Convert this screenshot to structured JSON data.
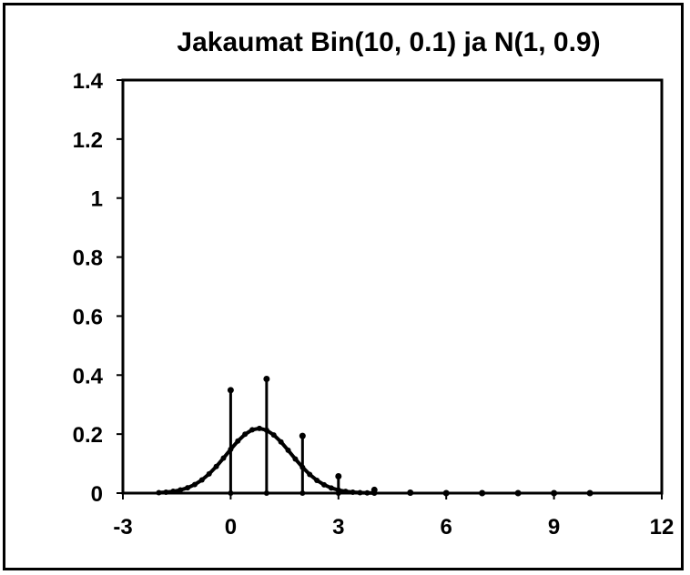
{
  "chart_data": {
    "type": "line",
    "title": "Jakaumat Bin(10, 0.1) ja N(1, 0.9)",
    "xlabel": "",
    "ylabel": "",
    "xlim": [
      -3,
      12
    ],
    "ylim": [
      0,
      1.4
    ],
    "x_ticks": [
      -3,
      0,
      3,
      6,
      9,
      12
    ],
    "x_tick_labels": [
      "-3",
      "0",
      "3",
      "6",
      "9",
      "12"
    ],
    "y_ticks": [
      0,
      0.2,
      0.4,
      0.6,
      0.8,
      1,
      1.2,
      1.4
    ],
    "y_tick_labels": [
      "0",
      "0.2",
      "0.4",
      "0.6",
      "0.8",
      "1",
      "1.2",
      "1.4"
    ],
    "grid": false,
    "legend": "none",
    "series": [
      {
        "kind": "stem",
        "x": [
          0,
          1,
          2,
          3,
          4,
          5,
          6,
          7,
          8,
          9,
          10
        ],
        "values": [
          0.349,
          0.387,
          0.194,
          0.057,
          0.011,
          0.0015,
          0.0001,
          0,
          0,
          0,
          0
        ]
      },
      {
        "kind": "curve",
        "x": [
          -2.0,
          -1.8,
          -1.6,
          -1.4,
          -1.2,
          -1.0,
          -0.8,
          -0.6,
          -0.4,
          -0.2,
          0.0,
          0.2,
          0.4,
          0.6,
          0.8,
          1.0,
          1.2,
          1.4,
          1.6,
          1.8,
          2.0,
          2.2,
          2.4,
          2.6,
          2.8,
          3.0,
          3.2,
          3.4,
          3.6,
          3.8,
          4.0
        ],
        "values": [
          0.0016,
          0.0032,
          0.006,
          0.0107,
          0.018,
          0.0291,
          0.0447,
          0.0651,
          0.0901,
          0.1186,
          0.1483,
          0.1764,
          0.1995,
          0.2147,
          0.2195,
          0.2132,
          0.1971,
          0.1735,
          0.1452,
          0.1157,
          0.0876,
          0.0632,
          0.0433,
          0.0282,
          0.0175,
          0.0103,
          0.0058,
          0.0031,
          0.0016,
          0.0008,
          0.0004
        ]
      }
    ],
    "colors": {
      "line": "#000000",
      "background": "#ffffff"
    }
  }
}
